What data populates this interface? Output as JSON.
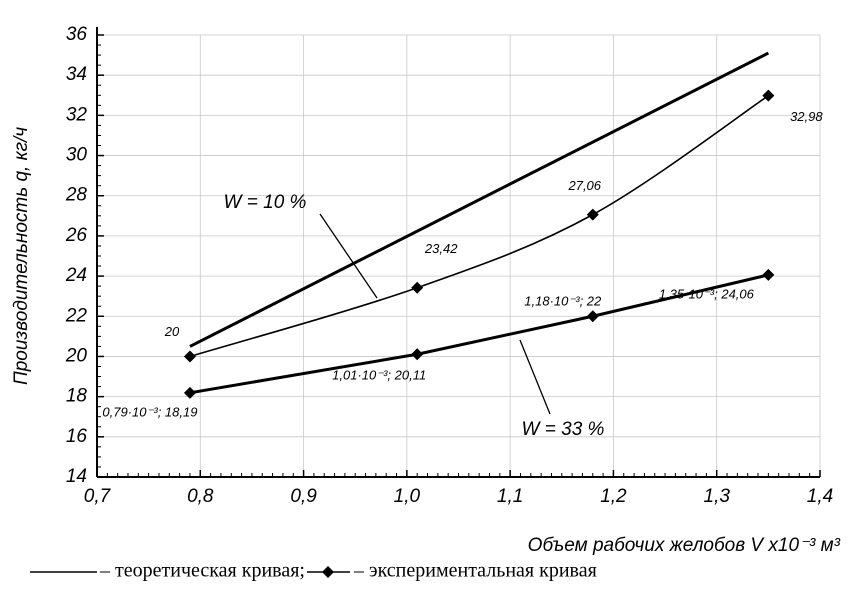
{
  "chart_data": {
    "type": "line",
    "xlabel": "Объем рабочих желобов V x10⁻³ м³",
    "ylabel": "Производительность q, кг/ч",
    "xlim": [
      0.7,
      1.4
    ],
    "ylim": [
      14,
      36
    ],
    "xticks": [
      {
        "value": 0.7,
        "label": "0,7"
      },
      {
        "value": 0.8,
        "label": "0,8"
      },
      {
        "value": 0.9,
        "label": "0,9"
      },
      {
        "value": 1.0,
        "label": "1,0"
      },
      {
        "value": 1.1,
        "label": "1,1"
      },
      {
        "value": 1.2,
        "label": "1,2"
      },
      {
        "value": 1.3,
        "label": "1,3"
      },
      {
        "value": 1.4,
        "label": "1,4"
      }
    ],
    "yticks": [
      14,
      16,
      18,
      20,
      22,
      24,
      26,
      28,
      30,
      32,
      34,
      36
    ],
    "grid": true,
    "series": [
      {
        "color": "#000000",
        "x": [
          0.79,
          1.35
        ],
        "values": [
          20.5,
          35.1
        ],
        "markers": false,
        "smooth": false
      },
      {
        "name": "W = 10 %",
        "color": "#000000",
        "x": [
          0.79,
          1.01,
          1.18,
          1.35
        ],
        "values": [
          20,
          23.42,
          27.06,
          32.98
        ],
        "value_labels": [
          "20",
          "23,42",
          "27,06",
          "32,98"
        ],
        "markers": true,
        "smooth": true
      },
      {
        "name": "W = 33 %",
        "color": "#000000",
        "x": [
          0.79,
          1.01,
          1.18,
          1.35
        ],
        "values": [
          18.19,
          20.11,
          22,
          24.06
        ],
        "value_labels": [
          "0,79·10⁻³; 18,19",
          "1,01·10⁻³; 20,11",
          "1,18·10⁻³; 22",
          "1,35·10⁻³; 24,06"
        ],
        "markers": true,
        "smooth": false
      }
    ],
    "legend": [
      "– теоретическая кривая;",
      "– экспериментальная кривая"
    ]
  }
}
